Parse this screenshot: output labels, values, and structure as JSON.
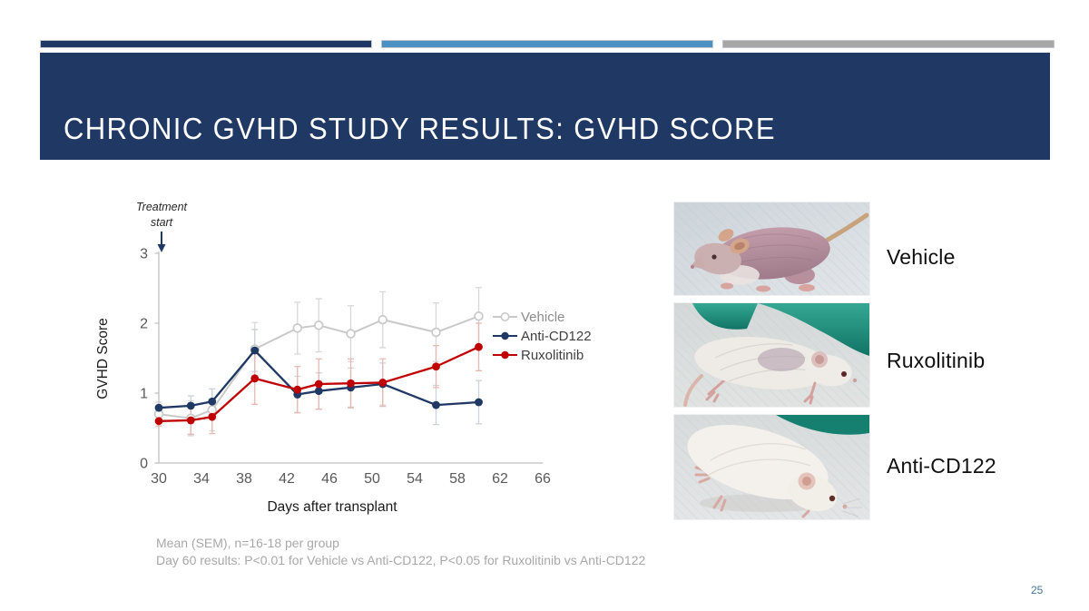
{
  "slide": {
    "title": "CHRONIC GVHD STUDY RESULTS: GVHD SCORE",
    "page_number": "25",
    "accent_colors": {
      "navy": "#1f3864",
      "steel_blue": "#4a90c2",
      "gray": "#a6a6a6",
      "banner": "#1f3864"
    }
  },
  "chart_data": {
    "type": "line",
    "title": "",
    "xlabel": "Days after transplant",
    "ylabel": "GVHD Score",
    "x": [
      30,
      33,
      35,
      39,
      43,
      45,
      48,
      51,
      56,
      60
    ],
    "x_ticks": [
      30,
      34,
      38,
      42,
      46,
      50,
      54,
      58,
      62,
      66
    ],
    "y_ticks": [
      0,
      1,
      2,
      3
    ],
    "xlim": [
      30,
      66
    ],
    "ylim": [
      0,
      3
    ],
    "grid": false,
    "legend_position": "right",
    "annotation": {
      "lines": [
        "Treatment",
        "start"
      ],
      "x": 30,
      "arrow": "down"
    },
    "series": [
      {
        "name": "Vehicle",
        "marker": "open-circle",
        "color": "#c9c9c9",
        "error_color": "#d8d8d8",
        "label_color": "#8c8c8c",
        "values": [
          0.7,
          0.64,
          0.76,
          1.63,
          1.93,
          1.97,
          1.85,
          2.05,
          1.87,
          2.1
        ],
        "sem": [
          0.1,
          0.25,
          0.3,
          0.38,
          0.37,
          0.38,
          0.4,
          0.4,
          0.42,
          0.41
        ]
      },
      {
        "name": "Anti-CD122",
        "marker": "filled-circle",
        "color": "#1f3864",
        "error_color": "#ccd2dc",
        "label_color": "#3f3f3f",
        "values": [
          0.79,
          0.82,
          0.88,
          1.61,
          0.98,
          1.03,
          1.08,
          1.13,
          0.83,
          0.87
        ],
        "sem": [
          0.08,
          0.14,
          0.18,
          0.3,
          0.26,
          0.26,
          0.28,
          0.3,
          0.28,
          0.31
        ]
      },
      {
        "name": "Ruxolitinib",
        "marker": "filled-circle",
        "color": "#c00000",
        "error_color": "#e6b8b2",
        "label_color": "#3f3f3f",
        "values": [
          0.6,
          0.61,
          0.66,
          1.21,
          1.05,
          1.13,
          1.14,
          1.15,
          1.38,
          1.66
        ],
        "sem": [
          0.07,
          0.2,
          0.24,
          0.37,
          0.33,
          0.36,
          0.35,
          0.34,
          0.3,
          0.34
        ]
      }
    ],
    "stats_note": "Mean (SEM), n=16-18 per group"
  },
  "photos": [
    {
      "label": "Vehicle",
      "description": "hairless pink mouse with severe fur loss"
    },
    {
      "label": "Ruxolitinib",
      "description": "white mouse with ruffled fur, gloved hand"
    },
    {
      "label": "Anti-CD122",
      "description": "white mouse with normal fur, gloved hand"
    }
  ],
  "footnote": {
    "line1": "Mean (SEM), n=16-18 per group",
    "line2": "Day 60 results:  P<0.01 for Vehicle vs Anti-CD122, P<0.05 for Ruxolitinib vs Anti-CD122"
  }
}
